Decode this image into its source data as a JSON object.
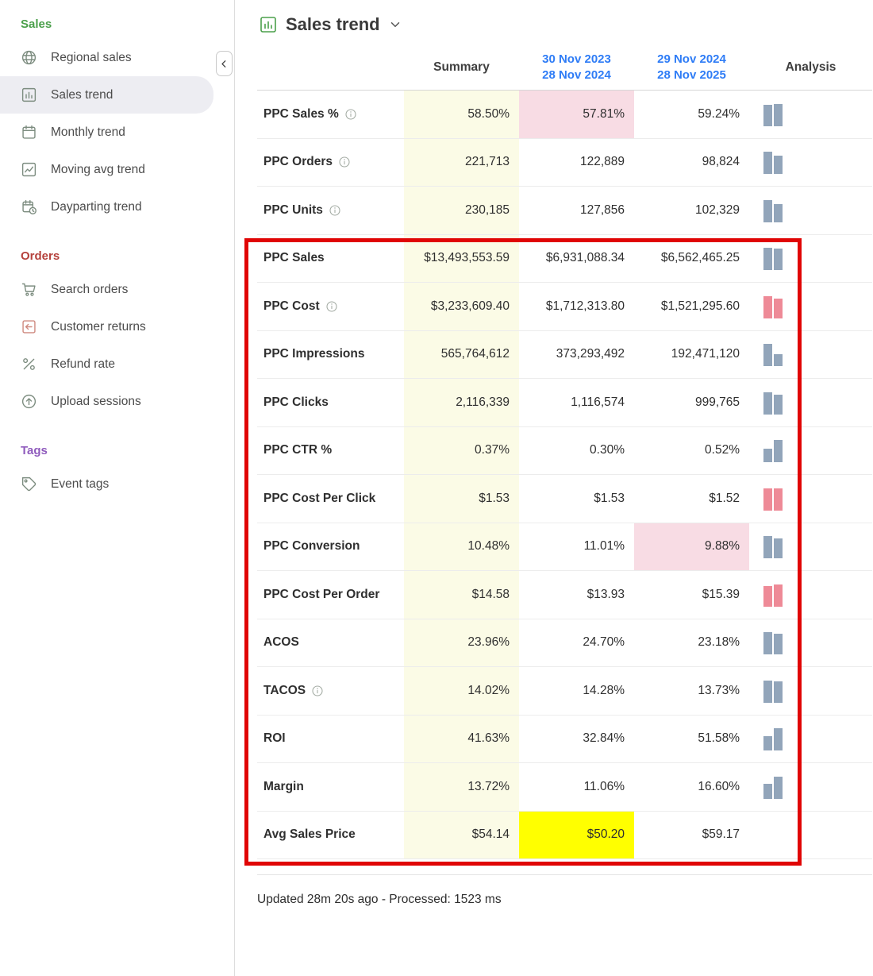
{
  "sidebar": {
    "sections": [
      {
        "title": "Sales",
        "color": "#4ba04b",
        "items": [
          {
            "label": "Regional sales",
            "icon": "globe"
          },
          {
            "label": "Sales trend",
            "icon": "bar-chart",
            "selected": true
          },
          {
            "label": "Monthly trend",
            "icon": "calendar"
          },
          {
            "label": "Moving avg trend",
            "icon": "line-chart"
          },
          {
            "label": "Dayparting trend",
            "icon": "calendar-clock"
          }
        ]
      },
      {
        "title": "Orders",
        "color": "#b5413c",
        "items": [
          {
            "label": "Search orders",
            "icon": "cart"
          },
          {
            "label": "Customer returns",
            "icon": "return",
            "icon_color": "#cf8a80"
          },
          {
            "label": "Refund rate",
            "icon": "percent"
          },
          {
            "label": "Upload sessions",
            "icon": "upload"
          }
        ]
      },
      {
        "title": "Tags",
        "color": "#8f5bbd",
        "items": [
          {
            "label": "Event tags",
            "icon": "tag"
          }
        ]
      }
    ]
  },
  "header": {
    "title": "Sales trend"
  },
  "table": {
    "columns": {
      "summary": "Summary",
      "period1": [
        "30 Nov 2023",
        "28 Nov 2024"
      ],
      "period2": [
        "29 Nov 2024",
        "28 Nov 2025"
      ],
      "analysis": "Analysis"
    },
    "rows": [
      {
        "label": "PPC Sales %",
        "info": true,
        "summary": "58.50%",
        "p1": "57.81%",
        "p2": "59.24%",
        "p1_bg": "pink",
        "bars": {
          "color": "blue",
          "heights": [
            27,
            28
          ]
        }
      },
      {
        "label": "PPC Orders",
        "info": true,
        "summary": "221,713",
        "p1": "122,889",
        "p2": "98,824",
        "bars": {
          "color": "blue",
          "heights": [
            28,
            23
          ]
        }
      },
      {
        "label": "PPC Units",
        "info": true,
        "summary": "230,185",
        "p1": "127,856",
        "p2": "102,329",
        "bars": {
          "color": "blue",
          "heights": [
            28,
            23
          ]
        }
      },
      {
        "label": "PPC Sales",
        "summary": "$13,493,553.59",
        "p1": "$6,931,088.34",
        "p2": "$6,562,465.25",
        "bars": {
          "color": "blue",
          "heights": [
            28,
            27
          ]
        }
      },
      {
        "label": "PPC Cost",
        "info": true,
        "summary": "$3,233,609.40",
        "p1": "$1,712,313.80",
        "p2": "$1,521,295.60",
        "bars": {
          "color": "red",
          "heights": [
            28,
            25
          ]
        }
      },
      {
        "label": "PPC Impressions",
        "summary": "565,764,612",
        "p1": "373,293,492",
        "p2": "192,471,120",
        "bars": {
          "color": "blue",
          "heights": [
            28,
            15
          ]
        }
      },
      {
        "label": "PPC Clicks",
        "summary": "2,116,339",
        "p1": "1,116,574",
        "p2": "999,765",
        "bars": {
          "color": "blue",
          "heights": [
            28,
            25
          ]
        }
      },
      {
        "label": "PPC CTR %",
        "summary": "0.37%",
        "p1": "0.30%",
        "p2": "0.52%",
        "bars": {
          "color": "blue",
          "heights": [
            17,
            28
          ]
        }
      },
      {
        "label": "PPC Cost Per Click",
        "summary": "$1.53",
        "p1": "$1.53",
        "p2": "$1.52",
        "bars": {
          "color": "red",
          "heights": [
            28,
            28
          ]
        }
      },
      {
        "label": "PPC Conversion",
        "summary": "10.48%",
        "p1": "11.01%",
        "p2": "9.88%",
        "p2_bg": "pink",
        "bars": {
          "color": "blue",
          "heights": [
            28,
            25
          ]
        }
      },
      {
        "label": "PPC Cost Per Order",
        "summary": "$14.58",
        "p1": "$13.93",
        "p2": "$15.39",
        "bars": {
          "color": "red",
          "heights": [
            26,
            28
          ]
        }
      },
      {
        "label": "ACOS",
        "summary": "23.96%",
        "p1": "24.70%",
        "p2": "23.18%",
        "bars": {
          "color": "blue",
          "heights": [
            28,
            26
          ]
        }
      },
      {
        "label": "TACOS",
        "info": true,
        "summary": "14.02%",
        "p1": "14.28%",
        "p2": "13.73%",
        "bars": {
          "color": "blue",
          "heights": [
            28,
            27
          ]
        }
      },
      {
        "label": "ROI",
        "summary": "41.63%",
        "p1": "32.84%",
        "p2": "51.58%",
        "bars": {
          "color": "blue",
          "heights": [
            18,
            28
          ]
        }
      },
      {
        "label": "Margin",
        "summary": "13.72%",
        "p1": "11.06%",
        "p2": "16.60%",
        "bars": {
          "color": "blue",
          "heights": [
            19,
            28
          ]
        }
      },
      {
        "label": "Avg Sales Price",
        "summary": "$54.14",
        "p1": "$50.20",
        "p2": "$59.17",
        "p1_bg": "yellow",
        "bars": null
      }
    ]
  },
  "colors": {
    "summary_bg": "#fbfbe6",
    "pink_bg": "#f8dce4",
    "yellow_bg": "#ffff00",
    "bar_blue": "#92a5ba",
    "bar_red": "#ee8a97",
    "annotation": "#e00505",
    "header_blue": "#2e7cf6"
  },
  "footer": {
    "status": "Updated 28m 20s ago - Processed: 1523 ms"
  }
}
